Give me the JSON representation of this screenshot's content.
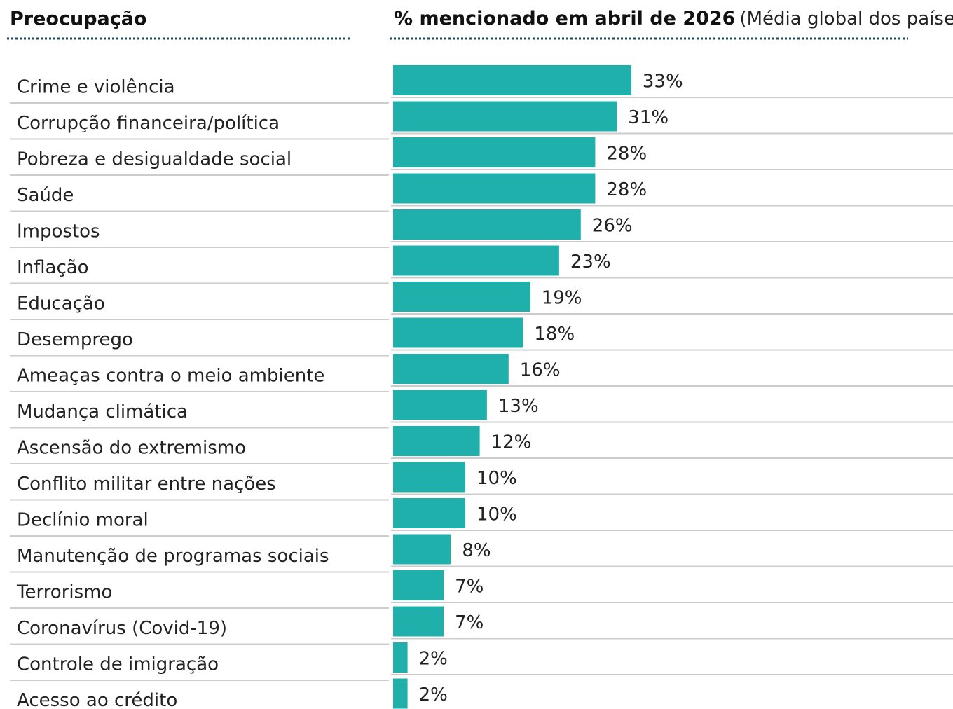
{
  "chart_data": {
    "type": "bar",
    "category_header": "Preocupação",
    "value_header": "% mencionado em abril de 2026",
    "value_subheader": "(Média global dos países)",
    "categories": [
      "Crime e violência",
      "Corrupção financeira/política",
      "Pobreza e desigualdade social",
      "Saúde",
      "Impostos",
      "Inflação",
      "Educação",
      "Desemprego",
      "Ameaças contra o meio ambiente",
      "Mudança climática",
      "Ascensão do extremismo",
      "Conflito militar entre nações",
      "Declínio moral",
      "Manutenção de programas sociais",
      "Terrorismo",
      "Coronavírus (Covid-19)",
      "Controle de imigração",
      "Acesso ao crédito"
    ],
    "values": [
      33,
      31,
      28,
      28,
      26,
      23,
      19,
      18,
      16,
      13,
      12,
      10,
      10,
      8,
      7,
      7,
      2,
      2
    ],
    "value_labels": [
      "33%",
      "31%",
      "28%",
      "28%",
      "26%",
      "23%",
      "19%",
      "18%",
      "16%",
      "13%",
      "12%",
      "10%",
      "10%",
      "8%",
      "7%",
      "7%",
      "2%",
      "2%"
    ],
    "color": "#20b0ac"
  }
}
